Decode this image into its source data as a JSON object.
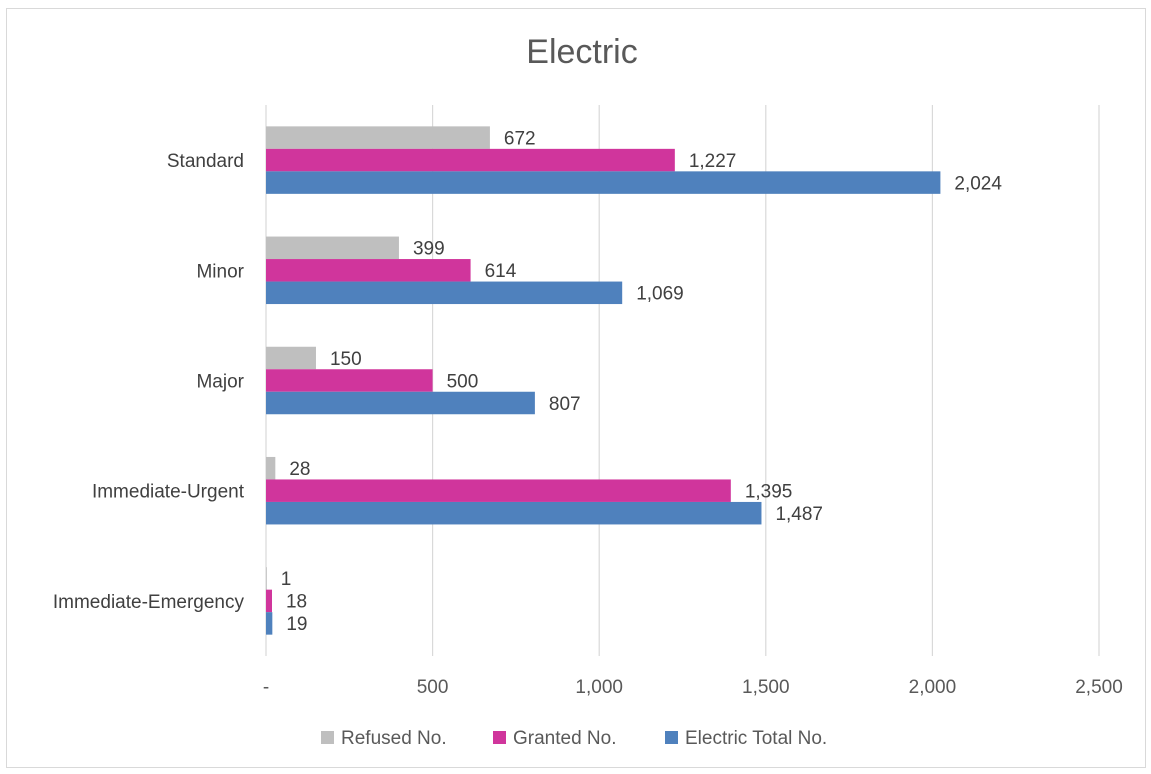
{
  "chart_data": {
    "type": "bar",
    "orientation": "horizontal",
    "title": "Electric",
    "categories": [
      "Standard",
      "Minor",
      "Major",
      "Immediate-Urgent",
      "Immediate-Emergency"
    ],
    "series": [
      {
        "name": "Refused No.",
        "color": "#bfbfbf",
        "values": [
          672,
          399,
          150,
          28,
          1
        ],
        "labels": [
          "672",
          "399",
          "150",
          "28",
          "1"
        ]
      },
      {
        "name": "Granted No.",
        "color": "#d0359c",
        "values": [
          1227,
          614,
          500,
          1395,
          18
        ],
        "labels": [
          "1,227",
          "614",
          "500",
          "1,395",
          "18"
        ]
      },
      {
        "name": "Electric Total No.",
        "color": "#4f81bd",
        "values": [
          2024,
          1069,
          807,
          1487,
          19
        ],
        "labels": [
          "2,024",
          "1,069",
          "807",
          "1,487",
          "19"
        ]
      }
    ],
    "xlim": [
      0,
      2500
    ],
    "ticks": [
      0,
      500,
      1000,
      1500,
      2000,
      2500
    ],
    "tick_labels": [
      "-",
      "500",
      "1,000",
      "1,500",
      "2,000",
      "2,500"
    ],
    "grid": "vertical",
    "legend_position": "bottom"
  }
}
